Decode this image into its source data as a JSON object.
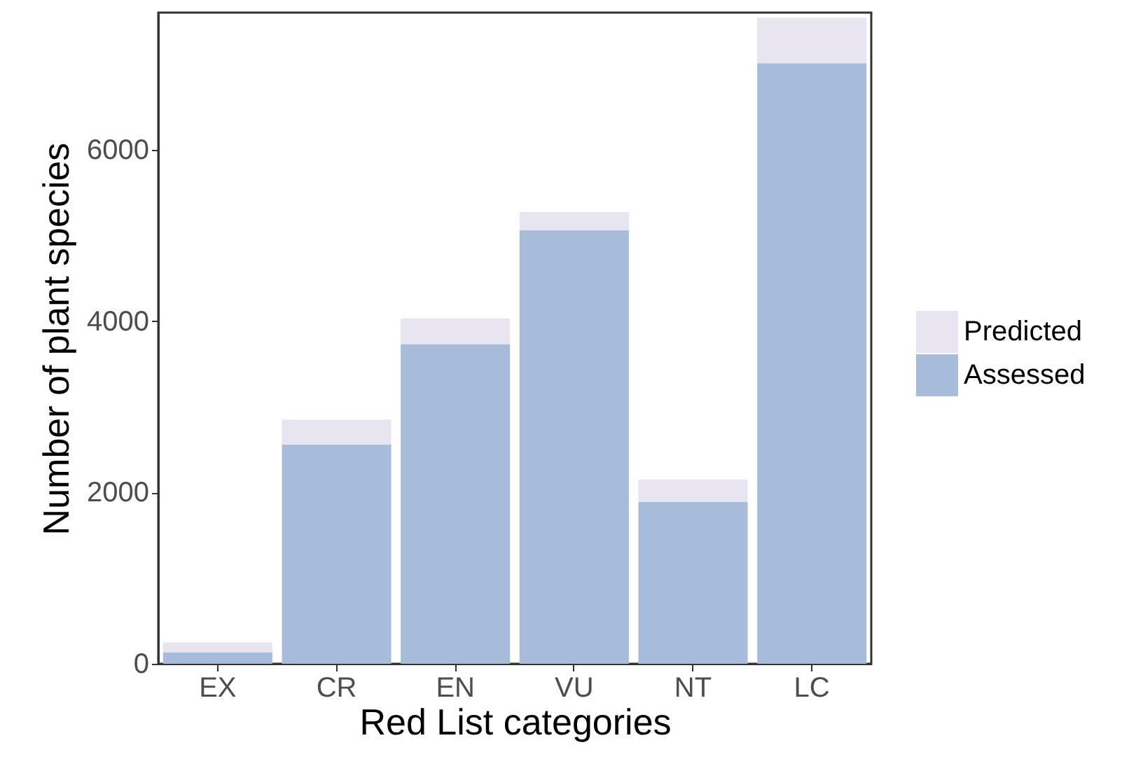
{
  "chart_data": {
    "type": "bar",
    "xlabel": "Red List categories",
    "ylabel": "Number of plant species",
    "categories": [
      "EX",
      "CR",
      "EN",
      "VU",
      "NT",
      "LC"
    ],
    "stacked": true,
    "series": [
      {
        "name": "Assessed",
        "color": "#a7bcdb",
        "values": [
          130,
          2560,
          3730,
          5060,
          1890,
          7010
        ]
      },
      {
        "name": "Predicted",
        "color": "#e8e4f0",
        "values": [
          120,
          290,
          300,
          210,
          260,
          530
        ]
      }
    ],
    "ylim": [
      0,
      7600
    ],
    "yticks": [
      0,
      2000,
      4000,
      6000
    ],
    "grid": false,
    "legend": "right"
  }
}
